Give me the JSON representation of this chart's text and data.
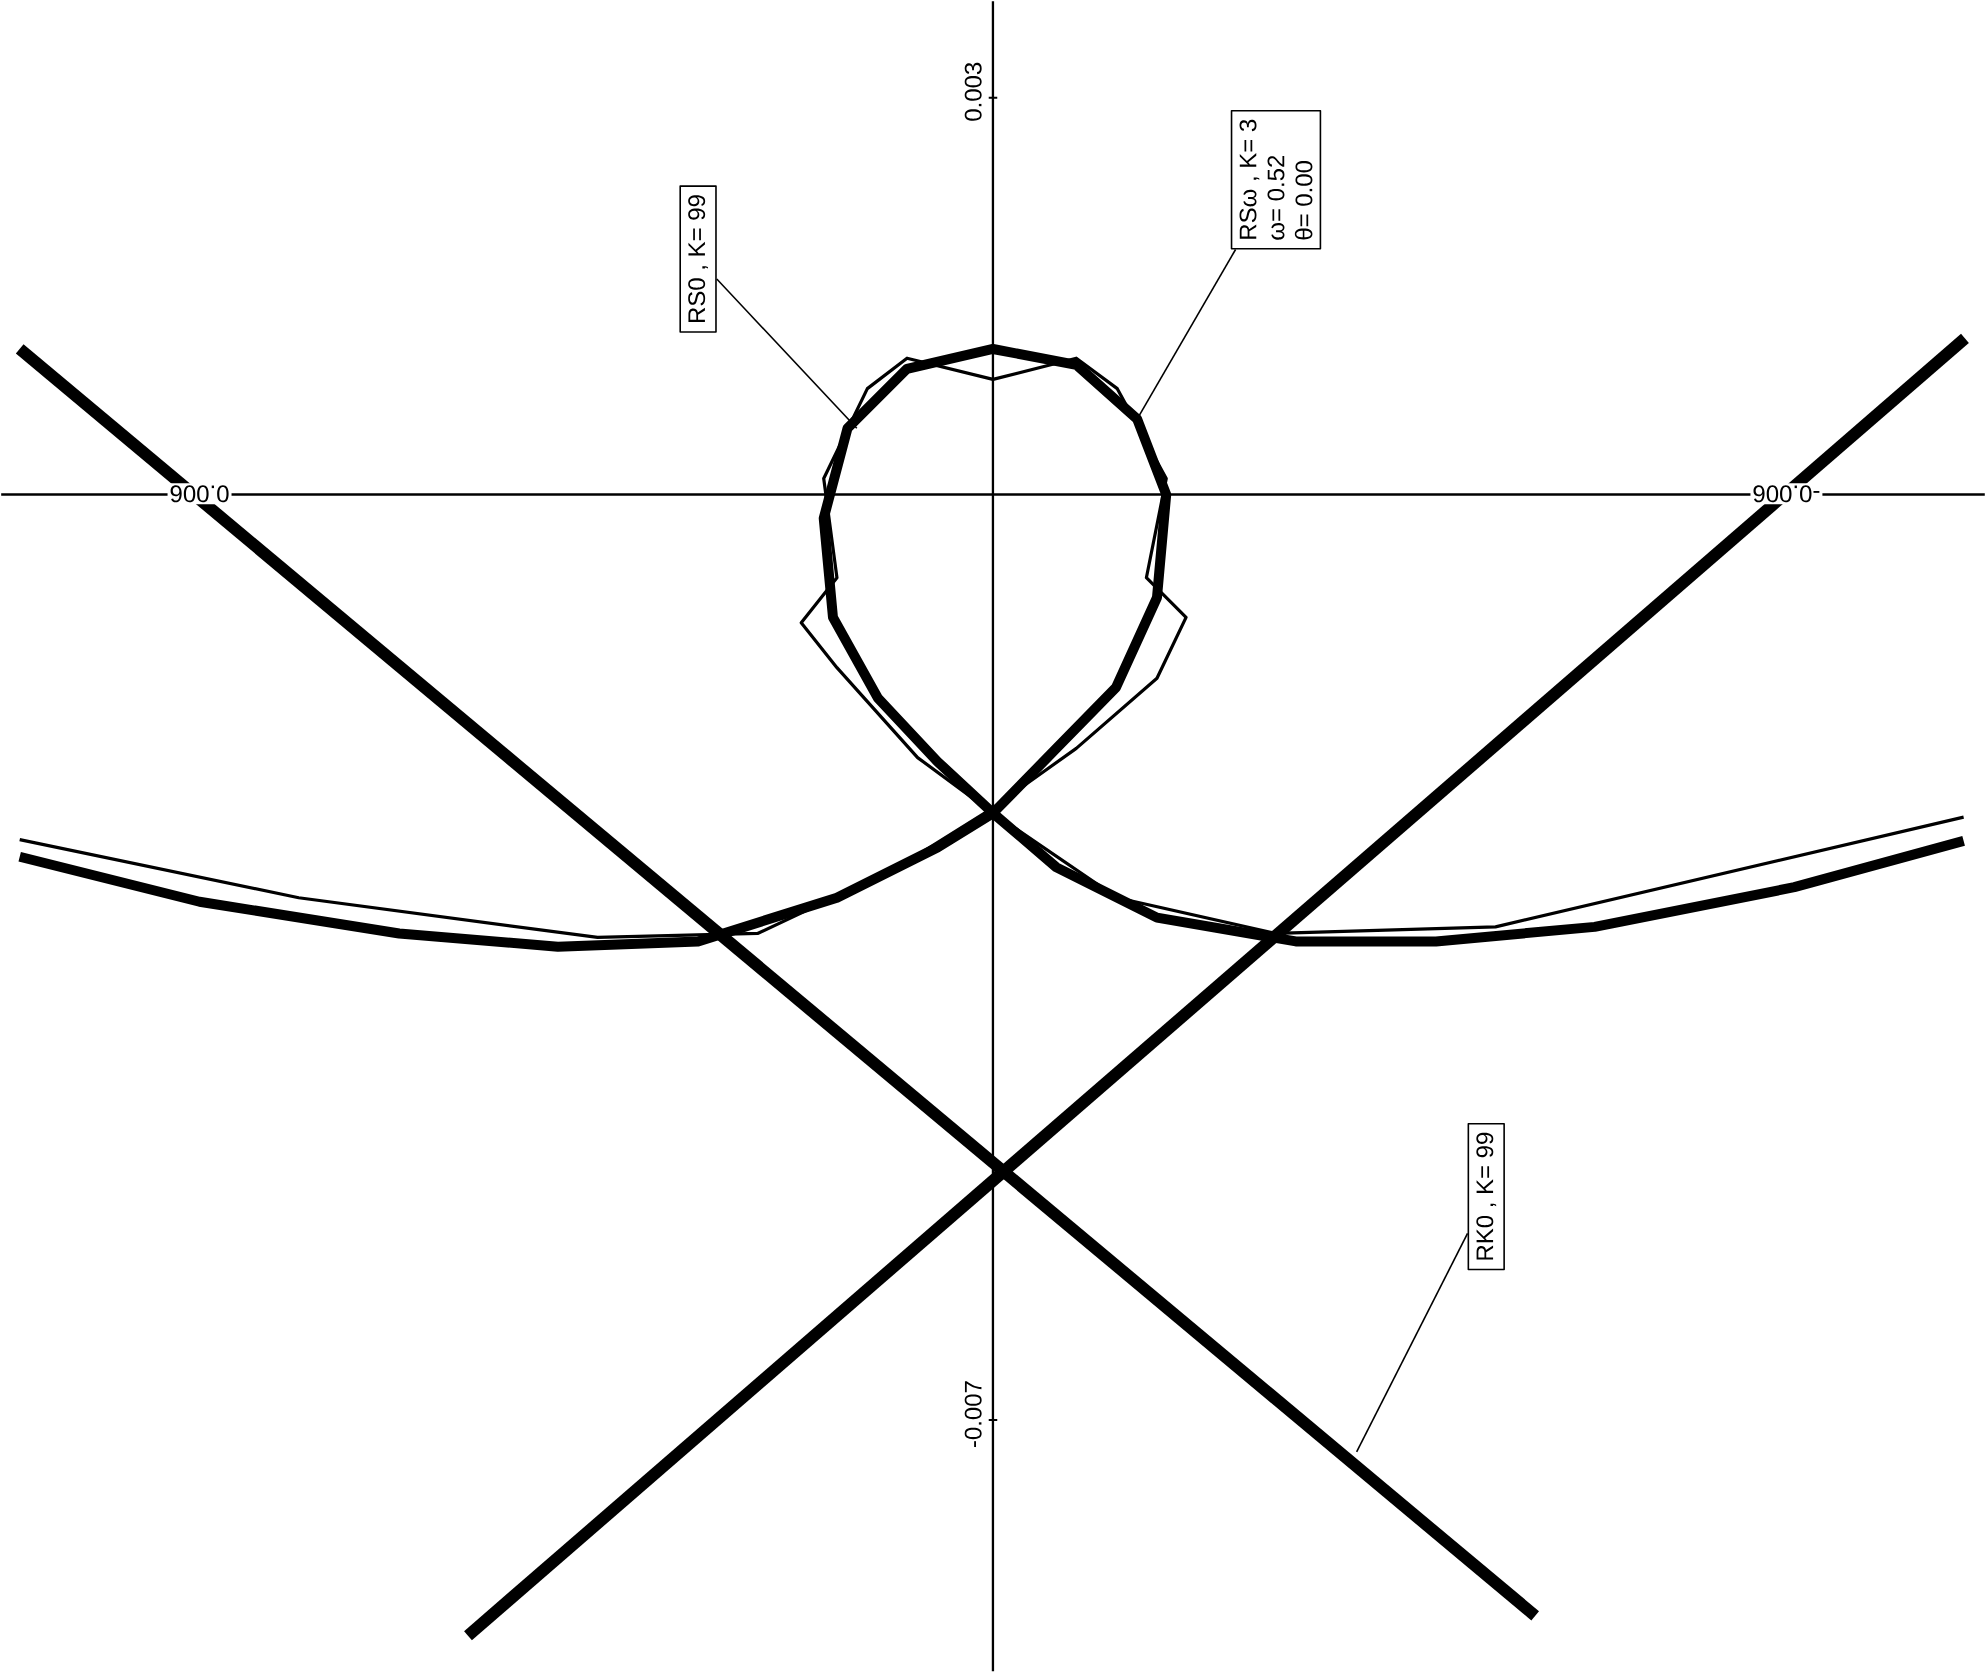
{
  "chart_data": {
    "type": "line",
    "series": [
      {
        "color": "#000000",
        "x": [
          0.00736,
          -0.0041
        ],
        "values": [
          0.0011,
          -0.00848
        ]
      },
      {
        "color": "#000000",
        "x": [
          -0.00735,
          0.00397
        ],
        "values": [
          0.00118,
          -0.00863
        ]
      },
      {
        "color": "#000000",
        "x": [
          0.00736,
          0.006,
          0.00449,
          0.00329,
          0.00223,
          0.00118,
          0.00042,
          0,
          -0.00048,
          -0.00093,
          -0.00124,
          -0.00131,
          -0.00109,
          -0.00063,
          0,
          0.00065,
          0.0011,
          0.00128,
          0.00121,
          0.00087,
          0.00042,
          0,
          -0.00048,
          -0.00124,
          -0.00229,
          -0.00335,
          -0.00455,
          -0.00606,
          -0.00734
        ],
        "values": [
          -0.00274,
          -0.00308,
          -0.00332,
          -0.00342,
          -0.00338,
          -0.00305,
          -0.00267,
          -0.00241,
          -0.00192,
          -0.00146,
          -0.00078,
          0.0,
          0.00057,
          0.00098,
          0.0011,
          0.00095,
          0.0005,
          -0.00018,
          -0.00093,
          -0.00154,
          -0.00202,
          -0.00241,
          -0.00282,
          -0.0032,
          -0.00338,
          -0.00338,
          -0.00327,
          -0.00297,
          -0.00262
        ]
      },
      {
        "color": "#000000",
        "x": [
          0.00736,
          0.00525,
          0.00299,
          0.00178,
          0.00072,
          0,
          -0.00063,
          -0.00124,
          -0.00146,
          -0.00116,
          -0.00131,
          -0.00094,
          -0.00063,
          0,
          0.00065,
          0.00095,
          0.00128,
          0.00118,
          0.00145,
          0.00118,
          0.00057,
          0,
          -0.00094,
          -0.00214,
          -0.0038,
          -0.00734
        ],
        "values": [
          -0.00261,
          -0.00305,
          -0.00335,
          -0.00332,
          -0.00282,
          -0.00237,
          -0.00192,
          -0.00139,
          -0.00093,
          -0.00063,
          0.00012,
          0.0008,
          0.00103,
          0.00087,
          0.00103,
          0.0008,
          0.00012,
          -0.00063,
          -0.00097,
          -0.00131,
          -0.00199,
          -0.00241,
          -0.00305,
          -0.00332,
          -0.00327,
          -0.00244
        ]
      }
    ],
    "annotations": [
      {
        "text": "RS0 , K= 99",
        "x": 0.00103,
        "y": 0.0005
      },
      {
        "text": "RSω , K= 3",
        "x": -0.00109,
        "y": 0.00057
      },
      "ω= 0.52",
      "θ= 0.00",
      {
        "text": "RK0 , K= 99",
        "x": -0.00275,
        "y": -0.00724
      }
    ],
    "xlim": [
      0.0075,
      -0.0075
    ],
    "ylim": [
      -0.0089,
      0.00373
    ],
    "xticks": [
      0.006,
      -0.006
    ],
    "yticks": [
      -0.007,
      0.003
    ],
    "grid": false,
    "marker": "none",
    "line_style": "solid"
  }
}
